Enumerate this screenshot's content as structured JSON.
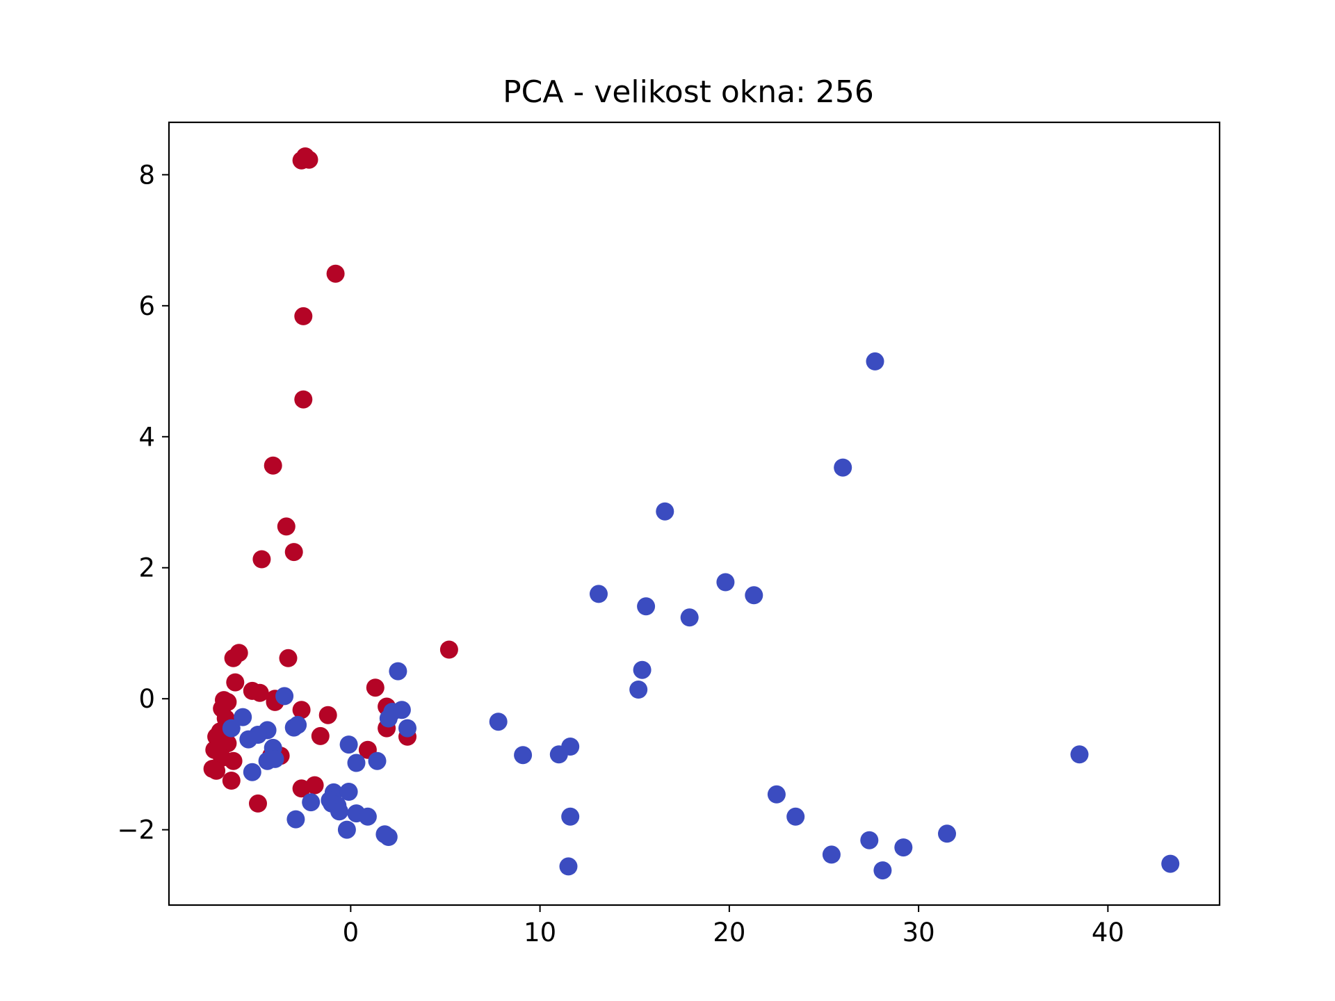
{
  "chart_data": {
    "type": "scatter",
    "title": "PCA - velikost okna: 256",
    "xlabel": "",
    "ylabel": "",
    "xlim": [
      -9.6,
      45.9
    ],
    "ylim": [
      -3.15,
      8.8
    ],
    "grid": false,
    "x_ticks": [
      0,
      10,
      20,
      30,
      40
    ],
    "x_tick_labels": [
      "0",
      "10",
      "20",
      "30",
      "40"
    ],
    "y_ticks": [
      -2,
      0,
      2,
      4,
      6,
      8
    ],
    "y_tick_labels": [
      "−2",
      "0",
      "2",
      "4",
      "6",
      "8"
    ],
    "colors": {
      "red": "#b40426",
      "blue": "#3b4cc0"
    },
    "series": [
      {
        "color": "#b40426",
        "points": [
          [
            -2.6,
            8.22
          ],
          [
            -2.4,
            8.28
          ],
          [
            -2.2,
            8.23
          ],
          [
            -0.8,
            6.49
          ],
          [
            -2.5,
            5.84
          ],
          [
            -2.5,
            4.57
          ],
          [
            -4.1,
            3.56
          ],
          [
            -3.4,
            2.63
          ],
          [
            -3.0,
            2.24
          ],
          [
            -4.7,
            2.13
          ],
          [
            5.2,
            0.75
          ],
          [
            -5.9,
            0.7
          ],
          [
            -6.2,
            0.62
          ],
          [
            -3.3,
            0.62
          ],
          [
            -6.1,
            0.25
          ],
          [
            1.3,
            0.17
          ],
          [
            -5.2,
            0.12
          ],
          [
            -4.8,
            0.09
          ],
          [
            -4.0,
            0.0
          ],
          [
            -6.7,
            -0.02
          ],
          [
            -6.5,
            -0.05
          ],
          [
            -4.0,
            -0.05
          ],
          [
            1.9,
            -0.12
          ],
          [
            -6.8,
            -0.15
          ],
          [
            -2.6,
            -0.17
          ],
          [
            -1.2,
            -0.25
          ],
          [
            -6.6,
            -0.3
          ],
          [
            -6.4,
            -0.4
          ],
          [
            -6.9,
            -0.5
          ],
          [
            -1.6,
            -0.57
          ],
          [
            3.0,
            -0.58
          ],
          [
            -7.1,
            -0.58
          ],
          [
            -6.5,
            -0.68
          ],
          [
            -7.2,
            -0.78
          ],
          [
            0.9,
            -0.78
          ],
          [
            -3.7,
            -0.87
          ],
          [
            -4.2,
            -0.87
          ],
          [
            -6.8,
            -0.9
          ],
          [
            -6.2,
            -0.95
          ],
          [
            -7.3,
            -1.07
          ],
          [
            -7.1,
            -1.1
          ],
          [
            -6.3,
            -1.25
          ],
          [
            -1.9,
            -1.32
          ],
          [
            -2.6,
            -1.37
          ],
          [
            -4.9,
            -1.6
          ],
          [
            1.9,
            -0.45
          ]
        ]
      },
      {
        "color": "#3b4cc0",
        "points": [
          [
            27.7,
            5.15
          ],
          [
            26.0,
            3.53
          ],
          [
            16.6,
            2.86
          ],
          [
            19.8,
            1.78
          ],
          [
            13.1,
            1.6
          ],
          [
            21.3,
            1.58
          ],
          [
            15.6,
            1.41
          ],
          [
            17.9,
            1.24
          ],
          [
            15.4,
            0.44
          ],
          [
            15.2,
            0.14
          ],
          [
            2.5,
            0.42
          ],
          [
            -3.5,
            0.04
          ],
          [
            2.2,
            -0.2
          ],
          [
            2.7,
            -0.17
          ],
          [
            2.0,
            -0.3
          ],
          [
            7.8,
            -0.35
          ],
          [
            -5.7,
            -0.28
          ],
          [
            -6.3,
            -0.45
          ],
          [
            -2.8,
            -0.4
          ],
          [
            -3.0,
            -0.44
          ],
          [
            3.0,
            -0.45
          ],
          [
            -4.4,
            -0.48
          ],
          [
            -4.9,
            -0.55
          ],
          [
            -5.4,
            -0.62
          ],
          [
            -0.1,
            -0.7
          ],
          [
            11.6,
            -0.73
          ],
          [
            -4.1,
            -0.75
          ],
          [
            11.0,
            -0.85
          ],
          [
            9.1,
            -0.86
          ],
          [
            38.5,
            -0.85
          ],
          [
            -4.4,
            -0.95
          ],
          [
            -4.0,
            -0.92
          ],
          [
            1.4,
            -0.95
          ],
          [
            0.3,
            -0.98
          ],
          [
            -5.2,
            -1.12
          ],
          [
            22.5,
            -1.46
          ],
          [
            -0.9,
            -1.43
          ],
          [
            -0.1,
            -1.42
          ],
          [
            -1.1,
            -1.55
          ],
          [
            -2.1,
            -1.58
          ],
          [
            -0.7,
            -1.63
          ],
          [
            -1.0,
            -1.6
          ],
          [
            -0.6,
            -1.72
          ],
          [
            0.3,
            -1.75
          ],
          [
            11.6,
            -1.8
          ],
          [
            0.9,
            -1.8
          ],
          [
            23.5,
            -1.8
          ],
          [
            -2.9,
            -1.84
          ],
          [
            -0.2,
            -2.0
          ],
          [
            31.5,
            -2.06
          ],
          [
            1.8,
            -2.07
          ],
          [
            2.0,
            -2.11
          ],
          [
            27.4,
            -2.16
          ],
          [
            29.2,
            -2.27
          ],
          [
            25.4,
            -2.38
          ],
          [
            43.3,
            -2.52
          ],
          [
            11.5,
            -2.56
          ],
          [
            28.1,
            -2.62
          ]
        ]
      }
    ]
  }
}
